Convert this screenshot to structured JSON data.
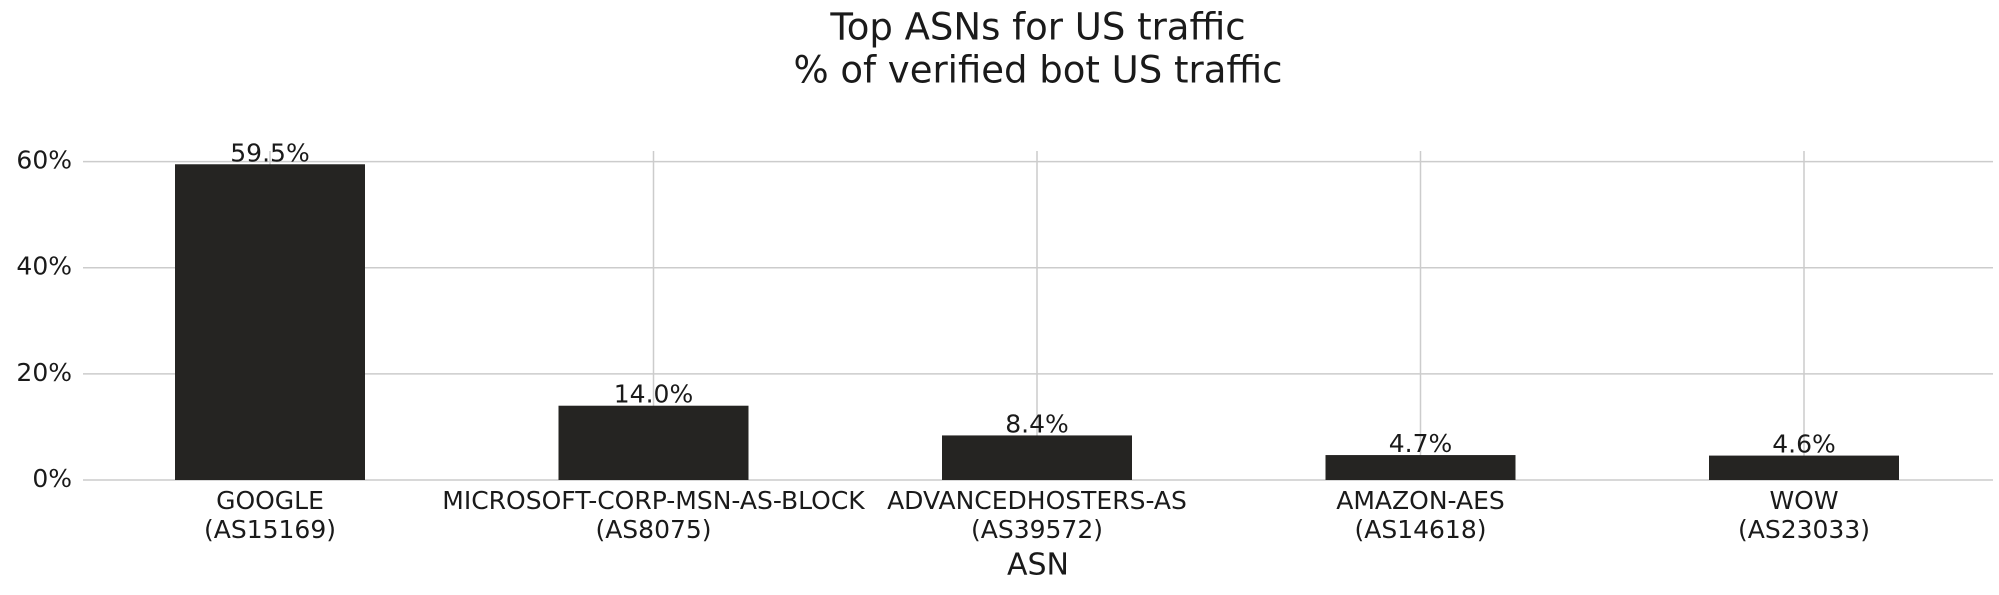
{
  "chart_data": {
    "type": "bar",
    "title": "Top ASNs for US traffic",
    "subtitle": "% of verified bot US traffic",
    "x_label": "ASN",
    "categories": [
      "GOOGLE\n(AS15169)",
      "MICROSOFT-CORP-MSN-AS-BLOCK\n(AS8075)",
      "ADVANCEDHOSTERS-AS\n(AS39572)",
      "AMAZON-AES\n(AS14618)",
      "WOW\n(AS23033)"
    ],
    "values": [
      59.5,
      14.0,
      8.4,
      4.7,
      4.6
    ],
    "value_labels": [
      "59.5%",
      "14.0%",
      "8.4%",
      "4.7%",
      "4.6%"
    ],
    "color": "#252422",
    "ylim": [
      0,
      62
    ],
    "yticks": [
      {
        "value": 0,
        "label": "0%"
      },
      {
        "value": 20,
        "label": "20%"
      },
      {
        "value": 40,
        "label": "40%"
      },
      {
        "value": 60,
        "label": "60%"
      }
    ],
    "grid": true
  }
}
